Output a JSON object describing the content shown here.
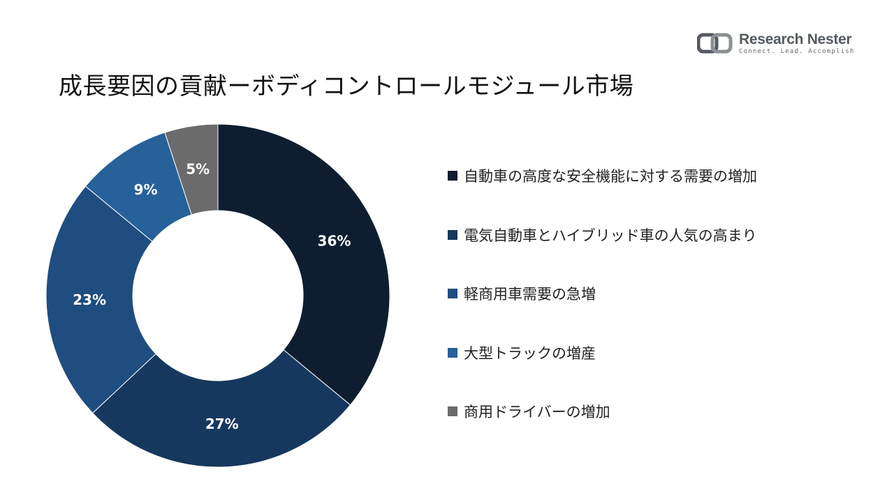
{
  "logo": {
    "name": "Research Nester",
    "tagline": "Connect. Lead. Accomplish",
    "icon": "research-nester-logo-icon"
  },
  "chart_data": {
    "type": "pie",
    "donut": true,
    "title": "成長要因の貢献ーボディコントロールモジュール市場",
    "legend_position": "right",
    "categories": [
      "自動車の高度な安全機能に対する需要の増加",
      "電気自動車とハイブリッド車の人気の高まり",
      "軽商用車需要の急増",
      "大型トラックの増産",
      "商用ドライバーの増加"
    ],
    "values": [
      36,
      27,
      23,
      9,
      5
    ],
    "labels": [
      "36%",
      "27%",
      "23%",
      "9%",
      "5%"
    ],
    "colors": [
      "#0e1e30",
      "#17385e",
      "#1f4d7f",
      "#27619a",
      "#6b6b6b"
    ]
  }
}
